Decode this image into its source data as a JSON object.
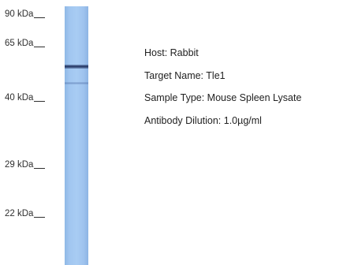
{
  "markers": [
    {
      "label": "90 kDa"
    },
    {
      "label": "65 kDa"
    },
    {
      "label": "40 kDa"
    },
    {
      "label": "29 kDa"
    },
    {
      "label": "22 kDa"
    }
  ],
  "colors": {
    "lane": "#a1c6f0",
    "band": "#1a2a55"
  },
  "info": {
    "host": "Host: Rabbit",
    "target": "Target Name: Tle1",
    "sample": "Sample Type: Mouse Spleen Lysate",
    "dilution": "Antibody Dilution: 1.0µg/ml"
  }
}
